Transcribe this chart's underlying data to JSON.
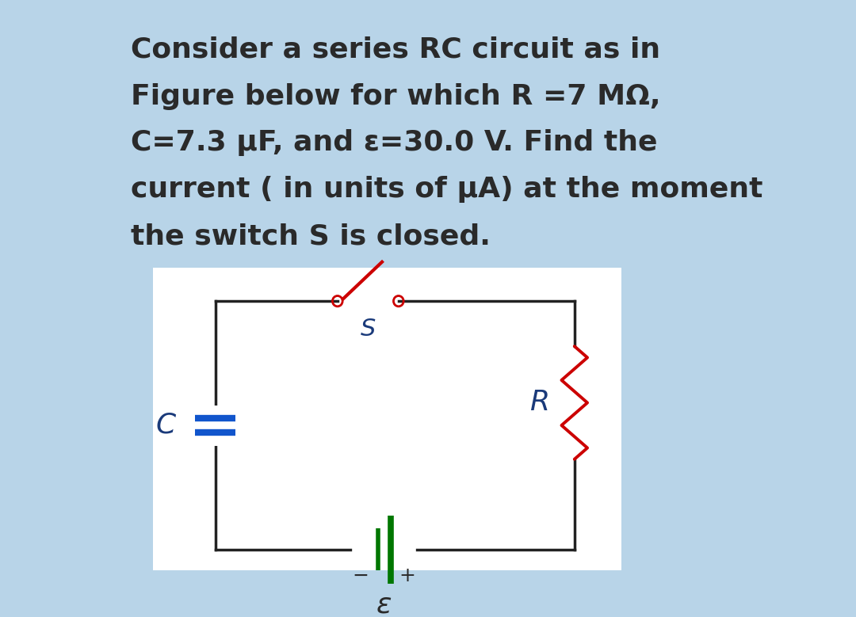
{
  "bg_color": "#b8d4e8",
  "panel_bg": "#ffffff",
  "text_color": "#2a2a2a",
  "title_lines": [
    "Consider a series RC circuit as in",
    "Figure below for which R =7 MΩ,",
    "C=7.3 μF, and ε=30.0 V. Find the",
    "current ( in units of μA) at the moment",
    "the switch S is closed."
  ],
  "circuit": {
    "box_color": "#222222",
    "resistor_color": "#cc0000",
    "capacitor_color": "#1155cc",
    "battery_color": "#007700",
    "switch_color": "#cc0000",
    "label_color": "#1a3a7a"
  }
}
